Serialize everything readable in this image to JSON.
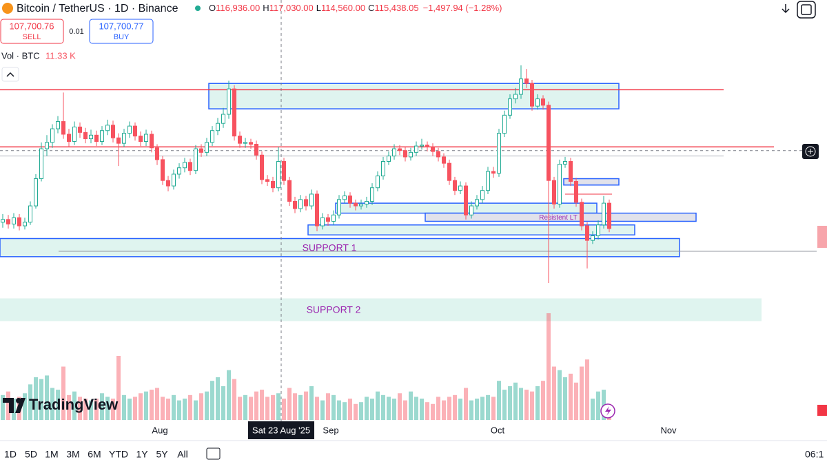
{
  "header": {
    "symbol": "Bitcoin / TetherUS · 1D · Binance",
    "ohlc_letters": [
      "O",
      "H",
      "L",
      "C"
    ],
    "ohlc_values": [
      "116,936.00",
      "117,030.00",
      "114,560.00",
      "115,438.05"
    ],
    "change": "−1,497.94 (−1.28%)"
  },
  "trade": {
    "sell_price": "107,700.76",
    "sell": "SELL",
    "spread": "0.01",
    "buy_price": "107,700.77",
    "buy": "BUY"
  },
  "volume_legend": {
    "label": "Vol · BTC",
    "value": "11.33 K"
  },
  "chart_data": {
    "type": "candlestick",
    "ylim": [
      86900,
      133200
    ],
    "volume_max": 60000,
    "up_color": "#22ab94",
    "down_color": "#f7525f",
    "candles": [
      [
        108700,
        109600,
        108100,
        109000
      ],
      [
        109000,
        109500,
        108000,
        108500
      ],
      [
        108500,
        109700,
        108000,
        109200
      ],
      [
        109200,
        109600,
        107800,
        108300
      ],
      [
        108300,
        109200,
        107900,
        108700
      ],
      [
        108700,
        111000,
        108400,
        110500
      ],
      [
        110500,
        114000,
        110200,
        113500
      ],
      [
        113500,
        117500,
        113200,
        116800
      ],
      [
        116800,
        118300,
        116000,
        117500
      ],
      [
        117500,
        119500,
        116900,
        119000
      ],
      [
        119000,
        120400,
        118500,
        119800
      ],
      [
        119800,
        123000,
        117900,
        118400
      ],
      [
        118400,
        119000,
        117000,
        117600
      ],
      [
        117600,
        119800,
        117200,
        119200
      ],
      [
        119200,
        119700,
        118000,
        118600
      ],
      [
        118600,
        119100,
        117400,
        117900
      ],
      [
        117900,
        118900,
        117400,
        118300
      ],
      [
        118300,
        118800,
        117100,
        117600
      ],
      [
        117600,
        119300,
        117200,
        118800
      ],
      [
        118800,
        120000,
        118300,
        119400
      ],
      [
        119400,
        119900,
        117500,
        118000
      ],
      [
        118000,
        118500,
        114900,
        117400
      ],
      [
        117400,
        119000,
        117000,
        118500
      ],
      [
        118500,
        119800,
        118000,
        119300
      ],
      [
        119300,
        119700,
        117700,
        118200
      ],
      [
        118200,
        118700,
        117100,
        117600
      ],
      [
        117600,
        118900,
        117100,
        118400
      ],
      [
        118400,
        118800,
        116400,
        116900
      ],
      [
        116900,
        117300,
        115000,
        115600
      ],
      [
        115600,
        116000,
        112800,
        113300
      ],
      [
        113300,
        113800,
        112100,
        112700
      ],
      [
        112700,
        114500,
        112300,
        114000
      ],
      [
        114000,
        115200,
        113500,
        114700
      ],
      [
        114700,
        115800,
        114200,
        115300
      ],
      [
        115300,
        115700,
        113900,
        114400
      ],
      [
        114400,
        117200,
        114000,
        116800
      ],
      [
        116800,
        117300,
        115900,
        116400
      ],
      [
        116400,
        118000,
        116000,
        117500
      ],
      [
        117500,
        119300,
        117100,
        118800
      ],
      [
        118800,
        120200,
        118300,
        119600
      ],
      [
        119600,
        121300,
        119100,
        120600
      ],
      [
        120600,
        124300,
        120100,
        123400
      ],
      [
        123400,
        123800,
        117700,
        118200
      ],
      [
        118200,
        118700,
        116900,
        117400
      ],
      [
        117400,
        118000,
        116900,
        117500
      ],
      [
        117500,
        117900,
        116800,
        117300
      ],
      [
        117300,
        117700,
        115600,
        116100
      ],
      [
        116100,
        116500,
        112900,
        113400
      ],
      [
        113400,
        113900,
        112700,
        113200
      ],
      [
        113200,
        113700,
        112000,
        112500
      ],
      [
        112500,
        117000,
        112100,
        115400
      ],
      [
        115400,
        115800,
        112800,
        113300
      ],
      [
        113300,
        113700,
        110500,
        111000
      ],
      [
        111000,
        111500,
        109700,
        110200
      ],
      [
        110200,
        111700,
        109800,
        111200
      ],
      [
        111200,
        111600,
        110000,
        110500
      ],
      [
        110500,
        112300,
        110100,
        111800
      ],
      [
        111800,
        112200,
        107700,
        108300
      ],
      [
        108300,
        109700,
        107900,
        109200
      ],
      [
        109200,
        109600,
        108300,
        108800
      ],
      [
        108800,
        110000,
        108400,
        109500
      ],
      [
        109500,
        111700,
        109100,
        111200
      ],
      [
        111200,
        112100,
        110800,
        111600
      ],
      [
        111600,
        112000,
        110300,
        110800
      ],
      [
        110800,
        111200,
        110000,
        110500
      ],
      [
        110500,
        111200,
        110100,
        110700
      ],
      [
        110700,
        111500,
        110300,
        111000
      ],
      [
        111000,
        113000,
        110600,
        112500
      ],
      [
        112500,
        114300,
        112100,
        113800
      ],
      [
        113800,
        115900,
        113400,
        115400
      ],
      [
        115400,
        116500,
        115000,
        116000
      ],
      [
        116000,
        117300,
        115600,
        116800
      ],
      [
        116800,
        117200,
        116100,
        116600
      ],
      [
        116600,
        117000,
        115400,
        115900
      ],
      [
        115900,
        116900,
        115500,
        116400
      ],
      [
        116400,
        117600,
        116000,
        117100
      ],
      [
        117100,
        117900,
        116700,
        117200
      ],
      [
        117200,
        117600,
        116500,
        117000
      ],
      [
        117000,
        117400,
        116000,
        116500
      ],
      [
        116500,
        116900,
        115400,
        115900
      ],
      [
        115900,
        116300,
        114700,
        115200
      ],
      [
        115200,
        115600,
        112800,
        113300
      ],
      [
        113300,
        113700,
        111700,
        112200
      ],
      [
        112200,
        113200,
        111800,
        112700
      ],
      [
        112700,
        113100,
        109000,
        109500
      ],
      [
        109500,
        111000,
        109100,
        110500
      ],
      [
        110500,
        111700,
        110100,
        111200
      ],
      [
        111200,
        112700,
        110800,
        112200
      ],
      [
        112200,
        114800,
        111800,
        114300
      ],
      [
        114300,
        114800,
        113600,
        114100
      ],
      [
        114100,
        119000,
        113700,
        118500
      ],
      [
        118500,
        121000,
        118100,
        120500
      ],
      [
        120500,
        122800,
        120100,
        122300
      ],
      [
        122300,
        123500,
        121800,
        122800
      ],
      [
        122800,
        126000,
        122300,
        124500
      ],
      [
        124500,
        125600,
        123500,
        124000
      ],
      [
        124000,
        124400,
        121000,
        121500
      ],
      [
        121500,
        122800,
        121100,
        122300
      ],
      [
        122300,
        122700,
        121100,
        121600
      ],
      [
        121600,
        122000,
        102000,
        113300
      ],
      [
        113300,
        113700,
        110200,
        110700
      ],
      [
        110700,
        115600,
        110300,
        115100
      ],
      [
        115100,
        115900,
        114700,
        115400
      ],
      [
        115400,
        115800,
        112700,
        113200
      ],
      [
        113200,
        113600,
        110400,
        110900
      ],
      [
        110900,
        111300,
        107800,
        108300
      ],
      [
        108300,
        108700,
        103600,
        106700
      ],
      [
        106700,
        107700,
        106300,
        107200
      ],
      [
        107200,
        108900,
        106800,
        108400
      ],
      [
        108400,
        111600,
        108000,
        110800
      ],
      [
        110800,
        111200,
        107600,
        108000
      ]
    ],
    "volume": [
      14000,
      16000,
      12000,
      13000,
      15000,
      20000,
      24000,
      23000,
      25000,
      18000,
      17000,
      30000,
      14000,
      16000,
      13000,
      12000,
      11000,
      12000,
      15000,
      13000,
      12000,
      36000,
      14000,
      12000,
      13000,
      15000,
      16000,
      17000,
      18000,
      13000,
      12000,
      14000,
      11000,
      12000,
      14000,
      11000,
      15000,
      16000,
      22000,
      24000,
      19000,
      28000,
      23000,
      13000,
      14000,
      13000,
      16000,
      17000,
      13000,
      14000,
      15000,
      12000,
      18000,
      15000,
      14000,
      16000,
      19000,
      13000,
      11000,
      15000,
      14000,
      11000,
      10000,
      12000,
      9000,
      10000,
      13000,
      12000,
      16000,
      14000,
      13000,
      12000,
      15000,
      11000,
      16000,
      13000,
      12000,
      10000,
      9000,
      13000,
      11000,
      13000,
      14000,
      12000,
      18000,
      11000,
      12000,
      13000,
      14000,
      13000,
      22000,
      17000,
      19000,
      21000,
      18000,
      17000,
      16000,
      19000,
      22000,
      60000,
      30000,
      28000,
      24000,
      26000,
      21000,
      30000,
      34000,
      12000,
      16000,
      17000,
      9000
    ],
    "zones": [
      {
        "bottom": 121200,
        "top": 124000,
        "fill": "#d9f2ec",
        "border": "#2962ff"
      },
      {
        "bottom": 112800,
        "top": 113500,
        "fill": "#dcdde8",
        "border": "#2962ff"
      },
      {
        "bottom": 109700,
        "top": 110800,
        "fill": "#d9f2ec",
        "border": "#2962ff"
      },
      {
        "bottom": 108800,
        "top": 109700,
        "fill": "#dcdde8",
        "border": "#2962ff",
        "label": "Resistent LT"
      },
      {
        "bottom": 107300,
        "top": 108400,
        "fill": "#d9f2ec",
        "border": "#2962ff"
      },
      {
        "bottom": 104900,
        "top": 106900,
        "fill": "#d9f2ec",
        "border": "#2962ff",
        "label": "SUPPORT 1"
      },
      {
        "bottom": 97800,
        "top": 100300,
        "fill": "#d9f2ec",
        "label": "SUPPORT 2"
      }
    ],
    "lines": [
      {
        "price": 123300,
        "color": "#f23645"
      },
      {
        "price": 117000,
        "color": "#f23645"
      },
      {
        "price": 116000,
        "color": "#b2b5be"
      },
      {
        "price": 105500,
        "color": "#9598a1"
      },
      {
        "price": 111800,
        "color": "#f23645"
      }
    ],
    "crosshair": {
      "label": "Sat 23 Aug '25",
      "price": 116600
    },
    "x_labels": [
      "Aug",
      "Sep",
      "Oct",
      "Nov"
    ]
  },
  "logo": "TradingView",
  "toolbar": {
    "ranges": [
      "1D",
      "5D",
      "1M",
      "3M",
      "6M",
      "YTD",
      "1Y",
      "5Y",
      "All"
    ],
    "time": "06:1"
  }
}
